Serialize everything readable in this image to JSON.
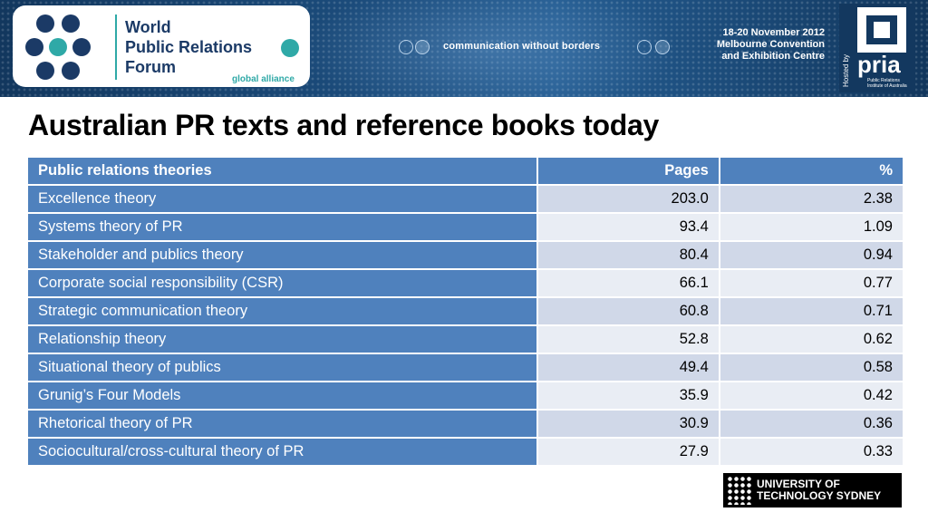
{
  "banner": {
    "logo_line1": "World",
    "logo_line2": "Public Relations",
    "logo_line3": "Forum",
    "logo_tag": "global alliance",
    "tagline": "communication without borders",
    "event_dates": "18-20 November 2012",
    "event_venue_line1": "Melbourne Convention",
    "event_venue_line2": "and Exhibition Centre",
    "hosted_by": "Hosted by",
    "host_name": "pria",
    "host_full_line1": "Public Relations",
    "host_full_line2": "Institute of Australia",
    "colors": {
      "navy": "#1b3a66",
      "teal": "#2fa9a7",
      "banner_blue": "#1d4f80"
    }
  },
  "title": "Australian PR texts and reference books today",
  "table": {
    "headers": {
      "theory": "Public relations theories",
      "pages": "Pages",
      "pct": "%"
    },
    "rows": [
      {
        "theory": "Excellence theory",
        "pages": "203.0",
        "pct": "2.38"
      },
      {
        "theory": "Systems theory of PR",
        "pages": "93.4",
        "pct": "1.09"
      },
      {
        "theory": "Stakeholder and publics theory",
        "pages": "80.4",
        "pct": "0.94"
      },
      {
        "theory": "Corporate social responsibility (CSR)",
        "pages": "66.1",
        "pct": "0.77"
      },
      {
        "theory": "Strategic communication theory",
        "pages": "60.8",
        "pct": "0.71"
      },
      {
        "theory": "Relationship theory",
        "pages": "52.8",
        "pct": "0.62"
      },
      {
        "theory": "Situational theory of publics",
        "pages": "49.4",
        "pct": "0.58"
      },
      {
        "theory": "Grunig’s Four Models",
        "pages": "35.9",
        "pct": "0.42"
      },
      {
        "theory": "Rhetorical theory of PR",
        "pages": "30.9",
        "pct": "0.36"
      },
      {
        "theory": "Sociocultural/cross-cultural theory of PR",
        "pages": "27.9",
        "pct": "0.33"
      }
    ],
    "colors": {
      "header_blue": "#4f81bd",
      "row_light": "#e9edf4",
      "row_mid": "#d0d8e8"
    }
  },
  "footer": {
    "uts_line1": "UNIVERSITY OF",
    "uts_line2": "TECHNOLOGY SYDNEY"
  }
}
